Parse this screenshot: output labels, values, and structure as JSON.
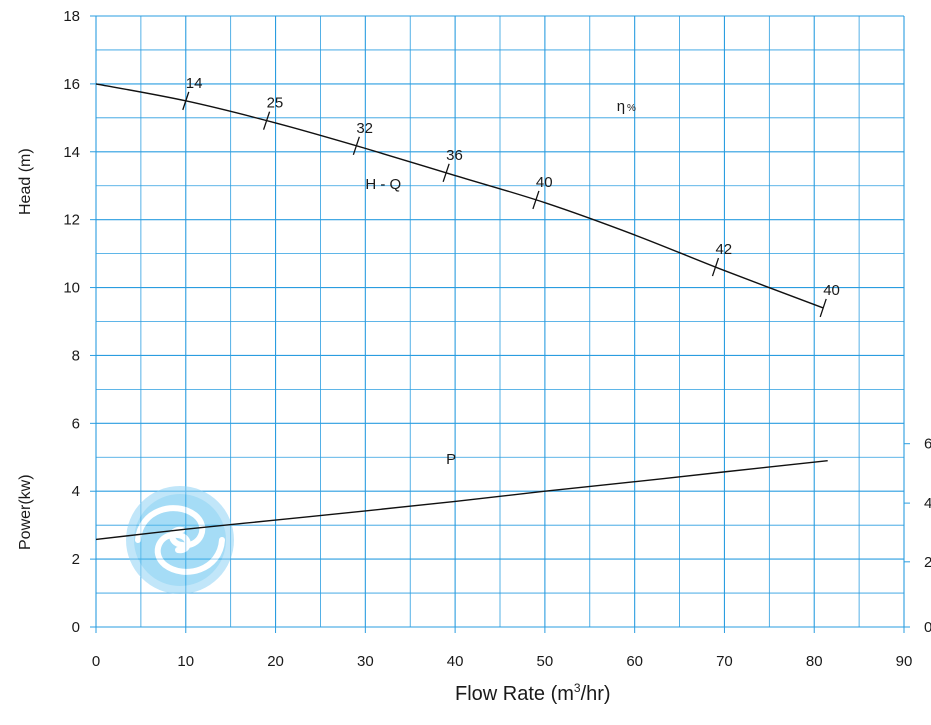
{
  "chart_data": {
    "type": "line",
    "title": "",
    "xlabel_prefix": "Flow Rate (m",
    "xlabel_sup": "3",
    "xlabel_suffix": "/hr)",
    "ylabel_head": "Head (m)",
    "ylabel_power": "Power(kw)",
    "xlim": [
      0,
      90
    ],
    "ylim": [
      0,
      18
    ],
    "x_ticks": [
      "0",
      "10",
      "20",
      "30",
      "40",
      "50",
      "60",
      "70",
      "80",
      "90"
    ],
    "y_ticks": [
      "0",
      "2",
      "4",
      "6",
      "8",
      "10",
      "12",
      "14",
      "16",
      "18"
    ],
    "right_ticks": [
      {
        "label": "0",
        "y": 0
      },
      {
        "label": "2",
        "y": 1.92
      },
      {
        "label": "4",
        "y": 3.65
      },
      {
        "label": "6",
        "y": 5.4
      }
    ],
    "grid": true,
    "grid_color": "#2a9de0",
    "curve_color": "#111111",
    "series": [
      {
        "name": "H - Q",
        "label_at": [
          30,
          12.9
        ],
        "x": [
          0,
          10,
          20,
          30,
          40,
          50,
          60,
          70,
          81
        ],
        "y": [
          16.0,
          15.5,
          14.85,
          14.1,
          13.3,
          12.5,
          11.55,
          10.5,
          9.4
        ]
      },
      {
        "name": "P",
        "label_at": [
          39,
          4.8
        ],
        "x": [
          0,
          10,
          20,
          30,
          40,
          50,
          60,
          70,
          81.5
        ],
        "y": [
          2.58,
          2.88,
          3.15,
          3.42,
          3.7,
          4.0,
          4.28,
          4.57,
          4.9
        ]
      }
    ],
    "efficiency_symbol": "η",
    "efficiency_unit": "%",
    "efficiency_label_at": [
      58,
      15.2
    ],
    "efficiency_points": [
      {
        "label": "14",
        "x": 10
      },
      {
        "label": "25",
        "x": 19
      },
      {
        "label": "32",
        "x": 29
      },
      {
        "label": "36",
        "x": 39
      },
      {
        "label": "40",
        "x": 49
      },
      {
        "label": "42",
        "x": 69
      },
      {
        "label": "40",
        "x": 81
      }
    ]
  },
  "watermark": {
    "icon": "swirl-logo-icon",
    "color": "#8fd3f5"
  }
}
